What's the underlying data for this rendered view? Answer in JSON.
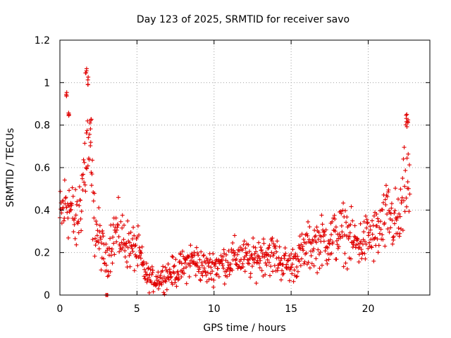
{
  "chart_data": {
    "type": "scatter",
    "title": "Day 123 of 2025, SRMTID for receiver savo",
    "xlabel": "GPS time / hours",
    "ylabel": "SRMTID / TECUs",
    "xlim": [
      0,
      24
    ],
    "ylim": [
      0,
      1.2
    ],
    "xticks": [
      0,
      5,
      10,
      15,
      20
    ],
    "yticks": [
      0,
      0.2,
      0.4,
      0.6,
      0.8,
      1,
      1.2
    ],
    "xtick_labels": [
      "0",
      "5",
      "10",
      "15",
      "20"
    ],
    "ytick_labels": [
      "0",
      "0.2",
      "0.4",
      "0.6",
      "0.8",
      "1",
      "1.2"
    ],
    "grid": true,
    "marker": "plus",
    "color": "#e00000",
    "envelope": {
      "description": "approximate median trend of the SRMTID point cloud (hours, TECU)",
      "x": [
        0,
        0.2,
        0.5,
        0.8,
        1.0,
        1.2,
        1.5,
        1.7,
        1.8,
        2.0,
        2.2,
        2.5,
        2.8,
        3.0,
        3.3,
        3.6,
        4.0,
        4.3,
        4.6,
        5.0,
        5.3,
        5.6,
        6.0,
        6.5,
        7.0,
        7.5,
        8.0,
        8.5,
        9.0,
        9.5,
        10.0,
        10.5,
        11.0,
        11.5,
        12.0,
        12.5,
        13.0,
        13.5,
        14.0,
        14.5,
        15.0,
        15.5,
        16.0,
        16.5,
        17.0,
        17.5,
        18.0,
        18.5,
        19.0,
        19.5,
        20.0,
        20.5,
        21.0,
        21.3,
        21.6,
        22.0,
        22.3,
        22.5,
        22.7
      ],
      "y": [
        0.35,
        0.4,
        0.45,
        0.38,
        0.33,
        0.37,
        0.55,
        0.65,
        0.7,
        0.6,
        0.35,
        0.28,
        0.2,
        0.15,
        0.25,
        0.3,
        0.27,
        0.25,
        0.22,
        0.22,
        0.15,
        0.09,
        0.07,
        0.08,
        0.1,
        0.11,
        0.13,
        0.17,
        0.15,
        0.12,
        0.14,
        0.15,
        0.16,
        0.18,
        0.17,
        0.16,
        0.19,
        0.2,
        0.18,
        0.15,
        0.14,
        0.18,
        0.22,
        0.24,
        0.25,
        0.26,
        0.28,
        0.3,
        0.25,
        0.24,
        0.27,
        0.28,
        0.33,
        0.38,
        0.35,
        0.33,
        0.45,
        0.6,
        0.45
      ]
    },
    "peaks": [
      {
        "x": 0.45,
        "y": 0.98
      },
      {
        "x": 0.55,
        "y": 0.88
      },
      {
        "x": 1.7,
        "y": 1.07
      },
      {
        "x": 1.8,
        "y": 1.03
      },
      {
        "x": 2.0,
        "y": 0.83
      },
      {
        "x": 3.0,
        "y": 0.0
      },
      {
        "x": 3.1,
        "y": 0.0
      },
      {
        "x": 22.5,
        "y": 0.86
      },
      {
        "x": 22.55,
        "y": 0.83
      }
    ]
  }
}
